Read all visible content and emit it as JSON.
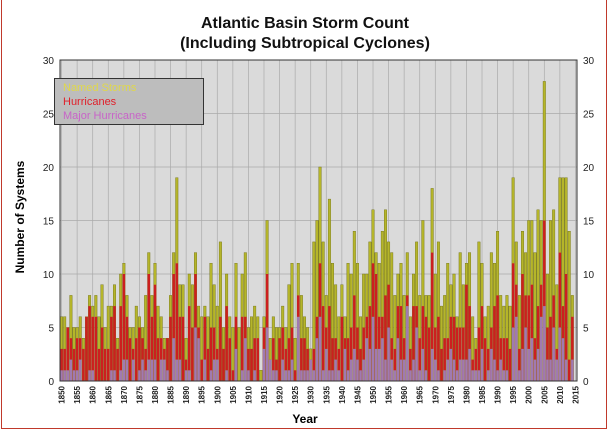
{
  "chart_data": {
    "type": "bar",
    "stacking": "overlay",
    "title": "Atlantic Basin Storm Count",
    "subtitle": "(Including Subtropical Cyclones)",
    "xlabel": "Year",
    "ylabel": "Number of Systems",
    "xlim": [
      1850,
      2015
    ],
    "ylim": [
      0,
      30
    ],
    "yticks": [
      0,
      5,
      10,
      15,
      20,
      25,
      30
    ],
    "xticks": [
      1850,
      1855,
      1860,
      1865,
      1870,
      1875,
      1880,
      1885,
      1890,
      1895,
      1900,
      1905,
      1910,
      1915,
      1920,
      1925,
      1930,
      1935,
      1940,
      1945,
      1950,
      1955,
      1960,
      1965,
      1970,
      1975,
      1980,
      1985,
      1990,
      1995,
      2000,
      2005,
      2010,
      2015
    ],
    "grid": true,
    "legend_position": "top-left",
    "colors": {
      "named": "#b5b52a",
      "hurricanes": "#cc1f1f",
      "major": "#a07ab0",
      "plot_bg": "#dadada"
    },
    "series": [
      {
        "name": "Named Storms",
        "legend_color": "#e0d84a",
        "values": [
          6,
          6,
          5,
          8,
          5,
          5,
          6,
          4,
          6,
          8,
          7,
          8,
          6,
          9,
          5,
          7,
          7,
          9,
          4,
          10,
          11,
          8,
          5,
          5,
          7,
          6,
          5,
          8,
          12,
          8,
          11,
          7,
          6,
          4,
          4,
          8,
          12,
          19,
          9,
          9,
          4,
          10,
          9,
          12,
          7,
          6,
          7,
          6,
          11,
          9,
          7,
          13,
          5,
          10,
          6,
          5,
          11,
          5,
          10,
          12,
          5,
          6,
          7,
          6,
          1,
          6,
          15,
          4,
          6,
          5,
          5,
          7,
          5,
          9,
          11,
          4,
          11,
          8,
          6,
          5,
          3,
          13,
          15,
          20,
          13,
          8,
          17,
          11,
          9,
          6,
          9,
          6,
          11,
          10,
          14,
          11,
          6,
          10,
          10,
          13,
          16,
          12,
          11,
          14,
          16,
          13,
          12,
          8,
          10,
          11,
          8,
          12,
          6,
          10,
          13,
          8,
          15,
          8,
          8,
          18,
          10,
          13,
          7,
          8,
          11,
          9,
          10,
          6,
          12,
          9,
          11,
          12,
          6,
          4,
          13,
          11,
          6,
          7,
          12,
          11,
          14,
          8,
          7,
          8,
          7,
          19,
          13,
          8,
          14,
          12,
          15,
          15,
          12,
          16,
          15,
          28,
          10,
          15,
          16,
          9,
          19,
          19,
          19,
          14,
          8
        ]
      },
      {
        "name": "Hurricanes",
        "legend_color": "#e0202a",
        "values": [
          3,
          3,
          5,
          4,
          3,
          4,
          4,
          3,
          6,
          7,
          6,
          6,
          3,
          5,
          3,
          3,
          6,
          7,
          3,
          7,
          10,
          6,
          4,
          3,
          4,
          5,
          4,
          3,
          10,
          6,
          9,
          4,
          4,
          3,
          4,
          6,
          10,
          11,
          6,
          6,
          2,
          7,
          5,
          10,
          5,
          2,
          6,
          3,
          5,
          5,
          3,
          6,
          3,
          7,
          4,
          1,
          6,
          0,
          6,
          6,
          3,
          3,
          4,
          4,
          0,
          5,
          10,
          2,
          4,
          2,
          4,
          5,
          3,
          4,
          5,
          1,
          8,
          4,
          4,
          3,
          2,
          3,
          6,
          11,
          7,
          5,
          7,
          4,
          4,
          3,
          6,
          4,
          4,
          5,
          8,
          5,
          3,
          5,
          6,
          7,
          11,
          10,
          6,
          6,
          8,
          9,
          4,
          3,
          7,
          7,
          4,
          8,
          3,
          7,
          7,
          4,
          7,
          6,
          5,
          12,
          5,
          6,
          3,
          4,
          4,
          6,
          6,
          5,
          5,
          5,
          9,
          7,
          2,
          3,
          5,
          7,
          4,
          3,
          5,
          7,
          8,
          4,
          4,
          4,
          3,
          11,
          9,
          3,
          10,
          8,
          8,
          9,
          4,
          7,
          9,
          15,
          5,
          6,
          8,
          3,
          12,
          7,
          10,
          2,
          6
        ]
      },
      {
        "name": "Major Hurricanes",
        "legend_color": "#c864c8",
        "values": [
          1,
          1,
          1,
          2,
          1,
          1,
          2,
          0,
          0,
          1,
          1,
          0,
          0,
          0,
          0,
          0,
          1,
          1,
          0,
          1,
          2,
          2,
          0,
          2,
          0,
          1,
          2,
          1,
          2,
          2,
          2,
          0,
          2,
          2,
          1,
          0,
          4,
          2,
          2,
          0,
          1,
          1,
          0,
          5,
          4,
          0,
          2,
          0,
          1,
          2,
          2,
          0,
          0,
          1,
          0,
          0,
          3,
          0,
          1,
          4,
          1,
          0,
          1,
          0,
          0,
          3,
          5,
          2,
          1,
          1,
          0,
          2,
          1,
          1,
          2,
          0,
          6,
          1,
          1,
          1,
          2,
          1,
          4,
          6,
          1,
          3,
          1,
          1,
          2,
          1,
          0,
          3,
          1,
          2,
          3,
          2,
          1,
          2,
          4,
          3,
          6,
          3,
          3,
          4,
          2,
          5,
          2,
          1,
          4,
          2,
          2,
          7,
          1,
          2,
          5,
          1,
          3,
          1,
          0,
          3,
          2,
          1,
          0,
          1,
          2,
          3,
          2,
          1,
          2,
          2,
          2,
          3,
          1,
          1,
          1,
          3,
          0,
          1,
          3,
          2,
          1,
          2,
          1,
          1,
          0,
          5,
          6,
          1,
          3,
          5,
          3,
          4,
          2,
          3,
          6,
          7,
          2,
          2,
          5,
          2,
          5,
          4,
          2,
          0,
          2
        ]
      }
    ]
  }
}
